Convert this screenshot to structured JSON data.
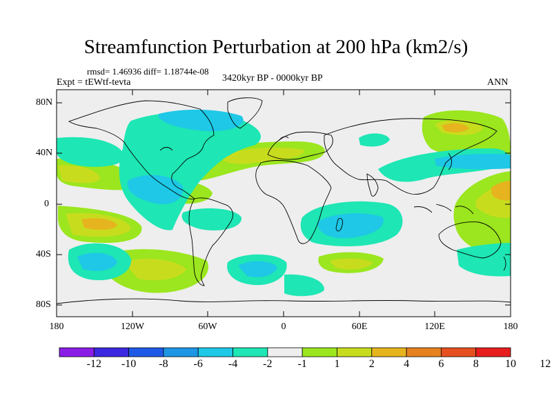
{
  "title": "Streamfunction Perturbation at 200 hPa (km2/s)",
  "stats": "rmsd= 1.46936 diff= 1.18744e-08",
  "experiment": "Expt = tEWtf-tevta",
  "period": "3420kyr BP - 0000kyr BP",
  "season": "ANN",
  "lat_labels": [
    "80N",
    "40N",
    "0",
    "40S",
    "80S"
  ],
  "lon_labels": [
    "180",
    "120W",
    "60W",
    "0",
    "60E",
    "120E",
    "180"
  ],
  "colorbar": {
    "colors": [
      "#8a1ee6",
      "#3c28e0",
      "#1e5ae6",
      "#1e96e6",
      "#1ec8e6",
      "#1ee6b4",
      "#eeeeee",
      "#9be61e",
      "#c8dc1e",
      "#e6b41e",
      "#e6821e",
      "#e6501e",
      "#e61e1e"
    ],
    "labels": [
      "-12",
      "-10",
      "-8",
      "-6",
      "-4",
      "-2",
      "-1",
      "1",
      "2",
      "4",
      "6",
      "8",
      "10",
      "12"
    ]
  },
  "colors": {
    "background": "#eeeeee",
    "coast": "#000000"
  }
}
